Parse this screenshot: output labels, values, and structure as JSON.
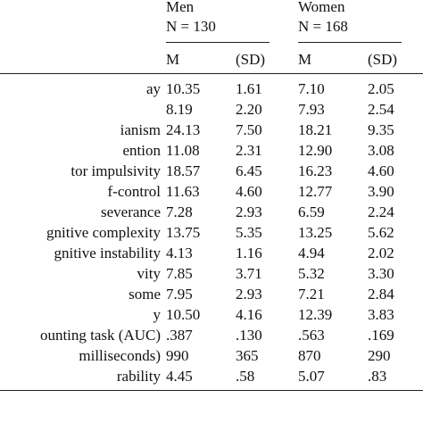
{
  "groups": [
    {
      "name": "Men",
      "n": "N = 130"
    },
    {
      "name": "Women",
      "n": "N = 168"
    }
  ],
  "columns": [
    "M",
    "(SD)",
    "M",
    "(SD)"
  ],
  "rows": [
    {
      "label": "ay",
      "men_m": "10.35",
      "men_sd": "1.61",
      "women_m": "7.10",
      "women_sd": "2.05"
    },
    {
      "label": "",
      "men_m": "8.19",
      "men_sd": "2.20",
      "women_m": "7.93",
      "women_sd": "2.54"
    },
    {
      "label": "ianism",
      "men_m": "24.13",
      "men_sd": "7.50",
      "women_m": "18.21",
      "women_sd": "9.35"
    },
    {
      "label": "ention",
      "men_m": "11.08",
      "men_sd": "2.31",
      "women_m": "12.90",
      "women_sd": "3.08"
    },
    {
      "label": "tor impulsivity",
      "men_m": "18.57",
      "men_sd": "6.45",
      "women_m": "16.23",
      "women_sd": "4.60"
    },
    {
      "label": "f-control",
      "men_m": "11.63",
      "men_sd": "4.60",
      "women_m": "12.77",
      "women_sd": "3.90"
    },
    {
      "label": "severance",
      "men_m": "7.28",
      "men_sd": "2.93",
      "women_m": "6.59",
      "women_sd": "2.24"
    },
    {
      "label": "gnitive complexity",
      "men_m": "13.75",
      "men_sd": "5.35",
      "women_m": "13.25",
      "women_sd": "5.62"
    },
    {
      "label": "gnitive instability",
      "men_m": "4.13",
      "men_sd": "1.16",
      "women_m": "4.94",
      "women_sd": "2.02"
    },
    {
      "label": "vity",
      "men_m": "7.85",
      "men_sd": "3.71",
      "women_m": "5.32",
      "women_sd": "3.30"
    },
    {
      "label": "some",
      "men_m": "7.95",
      "men_sd": "2.93",
      "women_m": "7.21",
      "women_sd": "2.84"
    },
    {
      "label": "y",
      "men_m": "10.50",
      "men_sd": "4.16",
      "women_m": "12.39",
      "women_sd": "3.83"
    },
    {
      "label": "ounting task (AUC)",
      "men_m": ".387",
      "men_sd": ".130",
      "women_m": ".563",
      "women_sd": ".169"
    },
    {
      "label": "milliseconds)",
      "men_m": "990",
      "men_sd": "365",
      "women_m": "870",
      "women_sd": "290"
    },
    {
      "label": "rability",
      "men_m": "4.45",
      "men_sd": ".58",
      "women_m": "5.07",
      "women_sd": ".83"
    }
  ]
}
